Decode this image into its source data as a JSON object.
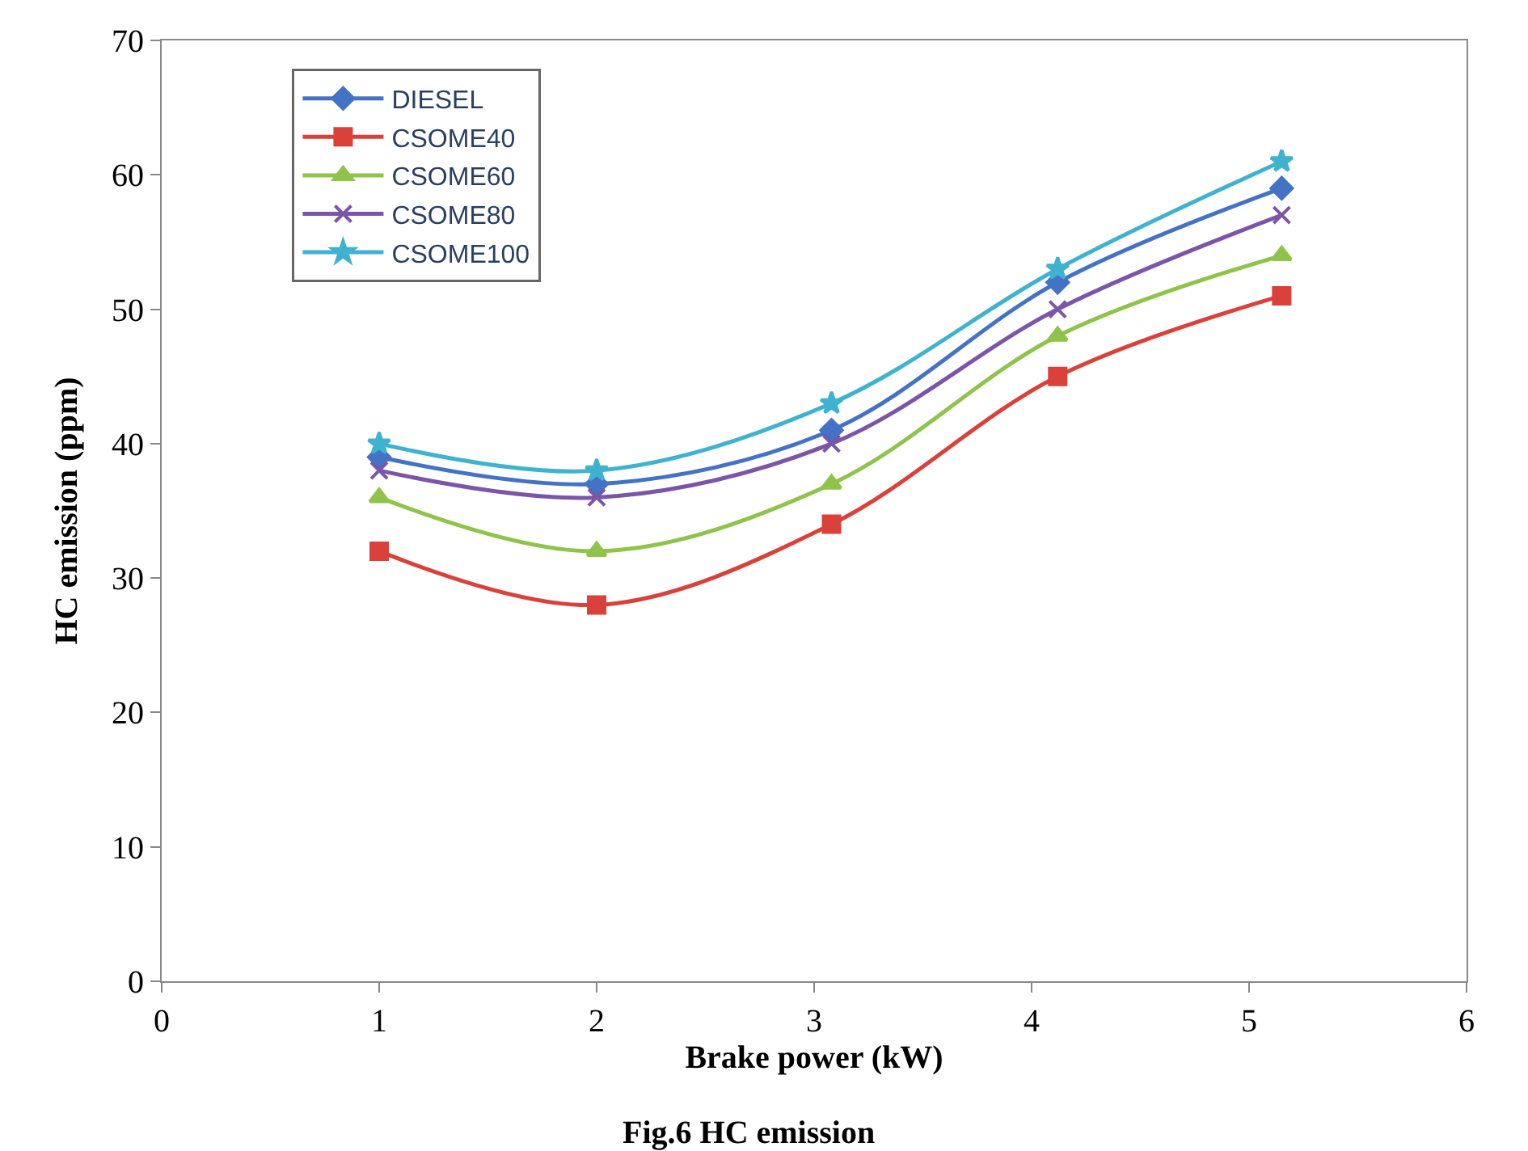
{
  "chart_data": {
    "type": "line",
    "xlabel": "Brake power (kW)",
    "ylabel": "HC emission (ppm)",
    "x": [
      1,
      2,
      3.08,
      4.12,
      5.15
    ],
    "series": [
      {
        "name": "DIESEL",
        "color": "#4472c4",
        "marker": "diamond",
        "values": [
          39,
          37,
          41,
          52,
          59
        ]
      },
      {
        "name": "CSOME40",
        "color": "#d9413a",
        "marker": "square",
        "values": [
          32,
          28,
          34,
          45,
          51
        ]
      },
      {
        "name": "CSOME60",
        "color": "#8fc34a",
        "marker": "triangle",
        "values": [
          36,
          32,
          37,
          48,
          54
        ]
      },
      {
        "name": "CSOME80",
        "color": "#7b55a8",
        "marker": "cross",
        "values": [
          38,
          36,
          40,
          50,
          57
        ]
      },
      {
        "name": "CSOME100",
        "color": "#3fb2cf",
        "marker": "star",
        "values": [
          40,
          38,
          43,
          53,
          61
        ]
      }
    ],
    "xlim": [
      0,
      6
    ],
    "xticks": [
      0,
      1,
      2,
      3,
      4,
      5,
      6
    ],
    "ylim": [
      0,
      70
    ],
    "yticks": [
      0,
      10,
      20,
      30,
      40,
      50,
      60,
      70
    ],
    "grid": false,
    "legend": "top left",
    "annotations": [
      "Fig.6 HC emission"
    ]
  }
}
